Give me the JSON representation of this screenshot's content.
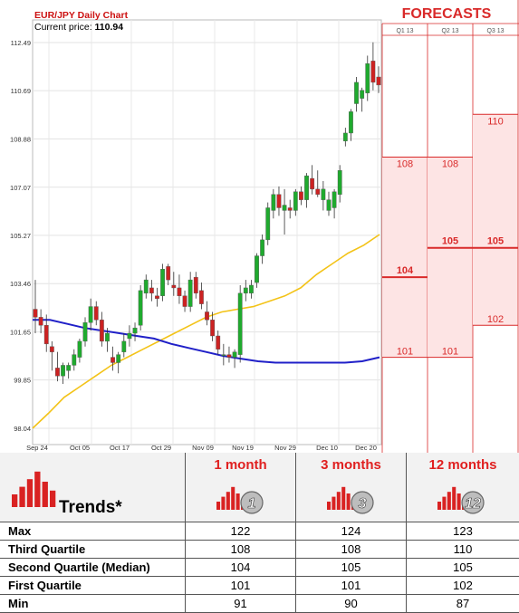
{
  "chart_data": {
    "type": "candlestick",
    "title": "EUR/JPY Daily Chart",
    "price_label": "Current price:",
    "current_price": "110.94",
    "y_ticks": [
      "112.49",
      "110.69",
      "108.88",
      "107.07",
      "105.27",
      "103.46",
      "101.65",
      "99.85",
      "98.04"
    ],
    "ylim": [
      98.04,
      112.49
    ],
    "x_ticks": [
      "Sep 24",
      "Oct 05",
      "Oct 17",
      "Oct 29",
      "Nov 09",
      "Nov 19",
      "Nov 29",
      "Dec 10",
      "Dec 20"
    ],
    "grid": true,
    "candles": [
      {
        "o": 102.5,
        "h": 103.6,
        "l": 101.6,
        "c": 102.2
      },
      {
        "o": 102.2,
        "h": 102.5,
        "l": 101.6,
        "c": 101.9
      },
      {
        "o": 101.9,
        "h": 102.3,
        "l": 100.9,
        "c": 101.2
      },
      {
        "o": 101.1,
        "h": 101.3,
        "l": 100.2,
        "c": 100.9
      },
      {
        "o": 100.3,
        "h": 100.9,
        "l": 99.8,
        "c": 100.0
      },
      {
        "o": 100.0,
        "h": 100.5,
        "l": 99.7,
        "c": 100.4
      },
      {
        "o": 100.2,
        "h": 100.5,
        "l": 99.9,
        "c": 100.4
      },
      {
        "o": 100.4,
        "h": 101.0,
        "l": 100.2,
        "c": 100.8
      },
      {
        "o": 100.7,
        "h": 101.4,
        "l": 100.5,
        "c": 101.3
      },
      {
        "o": 101.3,
        "h": 102.2,
        "l": 101.1,
        "c": 102.0
      },
      {
        "o": 102.0,
        "h": 102.9,
        "l": 101.7,
        "c": 102.6
      },
      {
        "o": 102.6,
        "h": 102.8,
        "l": 101.9,
        "c": 102.1
      },
      {
        "o": 102.1,
        "h": 102.4,
        "l": 101.1,
        "c": 101.3
      },
      {
        "o": 101.3,
        "h": 101.8,
        "l": 100.9,
        "c": 101.6
      },
      {
        "o": 100.7,
        "h": 101.1,
        "l": 100.2,
        "c": 100.5
      },
      {
        "o": 100.5,
        "h": 100.9,
        "l": 100.1,
        "c": 100.8
      },
      {
        "o": 100.9,
        "h": 101.6,
        "l": 100.7,
        "c": 101.3
      },
      {
        "o": 101.4,
        "h": 101.9,
        "l": 101.1,
        "c": 101.6
      },
      {
        "o": 101.6,
        "h": 102.0,
        "l": 101.3,
        "c": 101.8
      },
      {
        "o": 101.9,
        "h": 103.4,
        "l": 101.7,
        "c": 103.2
      },
      {
        "o": 103.1,
        "h": 103.8,
        "l": 102.9,
        "c": 103.6
      },
      {
        "o": 103.3,
        "h": 103.6,
        "l": 102.8,
        "c": 103.1
      },
      {
        "o": 103.0,
        "h": 103.3,
        "l": 102.6,
        "c": 102.9
      },
      {
        "o": 103.0,
        "h": 104.2,
        "l": 102.8,
        "c": 104.0
      },
      {
        "o": 104.1,
        "h": 104.2,
        "l": 103.4,
        "c": 103.6
      },
      {
        "o": 103.4,
        "h": 103.9,
        "l": 103.0,
        "c": 103.3
      },
      {
        "o": 103.3,
        "h": 103.8,
        "l": 102.7,
        "c": 103.0
      },
      {
        "o": 103.0,
        "h": 103.2,
        "l": 102.4,
        "c": 102.6
      },
      {
        "o": 102.6,
        "h": 103.9,
        "l": 102.4,
        "c": 103.6
      },
      {
        "o": 103.7,
        "h": 103.9,
        "l": 102.9,
        "c": 103.1
      },
      {
        "o": 103.2,
        "h": 103.5,
        "l": 102.5,
        "c": 102.7
      },
      {
        "o": 102.4,
        "h": 102.8,
        "l": 101.9,
        "c": 102.1
      },
      {
        "o": 102.1,
        "h": 102.4,
        "l": 101.3,
        "c": 101.5
      },
      {
        "o": 101.5,
        "h": 101.7,
        "l": 100.8,
        "c": 101.0
      },
      {
        "o": 100.8,
        "h": 101.2,
        "l": 100.4,
        "c": 100.8
      },
      {
        "o": 100.8,
        "h": 101.1,
        "l": 100.5,
        "c": 100.7
      },
      {
        "o": 100.7,
        "h": 101.0,
        "l": 100.3,
        "c": 100.9
      },
      {
        "o": 100.8,
        "h": 103.4,
        "l": 100.5,
        "c": 103.1
      },
      {
        "o": 103.1,
        "h": 103.6,
        "l": 102.8,
        "c": 103.3
      },
      {
        "o": 103.1,
        "h": 103.6,
        "l": 102.9,
        "c": 103.4
      },
      {
        "o": 103.5,
        "h": 104.6,
        "l": 103.3,
        "c": 104.5
      },
      {
        "o": 104.5,
        "h": 105.3,
        "l": 104.2,
        "c": 105.1
      },
      {
        "o": 105.1,
        "h": 106.5,
        "l": 104.9,
        "c": 106.3
      },
      {
        "o": 106.2,
        "h": 107.0,
        "l": 105.9,
        "c": 106.8
      },
      {
        "o": 106.8,
        "h": 107.1,
        "l": 106.0,
        "c": 106.3
      },
      {
        "o": 106.2,
        "h": 107.0,
        "l": 105.3,
        "c": 106.4
      },
      {
        "o": 106.3,
        "h": 106.6,
        "l": 105.9,
        "c": 106.2
      },
      {
        "o": 106.2,
        "h": 107.0,
        "l": 106.0,
        "c": 106.9
      },
      {
        "o": 106.9,
        "h": 107.1,
        "l": 106.4,
        "c": 106.6
      },
      {
        "o": 106.6,
        "h": 107.6,
        "l": 106.3,
        "c": 107.5
      },
      {
        "o": 107.4,
        "h": 107.9,
        "l": 106.8,
        "c": 107.0
      },
      {
        "o": 107.0,
        "h": 107.7,
        "l": 106.7,
        "c": 106.8
      },
      {
        "o": 106.6,
        "h": 107.3,
        "l": 106.2,
        "c": 107.0
      },
      {
        "o": 106.2,
        "h": 106.9,
        "l": 106.0,
        "c": 106.6
      },
      {
        "o": 106.3,
        "h": 107.0,
        "l": 105.9,
        "c": 106.9
      },
      {
        "o": 106.8,
        "h": 107.9,
        "l": 106.5,
        "c": 107.7
      },
      {
        "o": 108.8,
        "h": 109.3,
        "l": 108.6,
        "c": 109.1
      },
      {
        "o": 109.1,
        "h": 110.0,
        "l": 108.8,
        "c": 109.9
      },
      {
        "o": 110.2,
        "h": 111.2,
        "l": 109.9,
        "c": 111.0
      },
      {
        "o": 110.4,
        "h": 110.8,
        "l": 109.9,
        "c": 110.7
      },
      {
        "o": 110.6,
        "h": 112.0,
        "l": 110.3,
        "c": 111.7
      },
      {
        "o": 111.8,
        "h": 112.5,
        "l": 110.7,
        "c": 111.0
      },
      {
        "o": 111.2,
        "h": 111.6,
        "l": 110.6,
        "c": 110.9
      }
    ],
    "ma_yellow": [
      98.04,
      98.6,
      99.2,
      99.6,
      100.0,
      100.4,
      100.7,
      101.0,
      101.3,
      101.6,
      101.9,
      102.2,
      102.4,
      102.5,
      102.6,
      102.8,
      103.0,
      103.3,
      103.8,
      104.2,
      104.6,
      104.9,
      105.3
    ],
    "ma_blue": [
      102.1,
      102.1,
      101.95,
      101.8,
      101.7,
      101.6,
      101.5,
      101.4,
      101.2,
      101.05,
      100.9,
      100.75,
      100.65,
      100.55,
      100.5,
      100.5,
      100.5,
      100.5,
      100.5,
      100.55,
      100.7
    ],
    "forecast_columns": [
      "Q1 13",
      "Q2 13",
      "Q3 13"
    ],
    "forecasts": [
      {
        "q3": "108",
        "median": "104",
        "q1": "101",
        "top": 108.2,
        "mid": 103.7,
        "bot": 100.7
      },
      {
        "q3": "108",
        "median": "105",
        "q1": "101",
        "top": 108.2,
        "mid": 104.8,
        "bot": 100.7
      },
      {
        "q3": "110",
        "median": "105",
        "q1": "102",
        "top": 109.8,
        "mid": 104.8,
        "bot": 101.9
      }
    ],
    "forecast_title": "FORECASTS",
    "colors": {
      "bull": "#1faa2e",
      "bear": "#cc2222",
      "ma_yellow": "#f3c318",
      "ma_blue": "#2020c8",
      "forecast_red": "#d92a2a",
      "forecast_fill": "#fde4e4"
    }
  },
  "table": {
    "title": "Trends*",
    "horizons": [
      {
        "label": "1 month",
        "badge": "1"
      },
      {
        "label": "3 months",
        "badge": "3"
      },
      {
        "label": "12 months",
        "badge": "12"
      }
    ],
    "rows": [
      {
        "label": "Max",
        "values": [
          "122",
          "124",
          "123"
        ]
      },
      {
        "label": "Third Quartile",
        "values": [
          "108",
          "108",
          "110"
        ]
      },
      {
        "label": "Second Quartile (Median)",
        "values": [
          "104",
          "105",
          "105"
        ]
      },
      {
        "label": "First Quartile",
        "values": [
          "101",
          "101",
          "102"
        ]
      },
      {
        "label": "Min",
        "values": [
          "91",
          "90",
          "87"
        ]
      }
    ]
  }
}
